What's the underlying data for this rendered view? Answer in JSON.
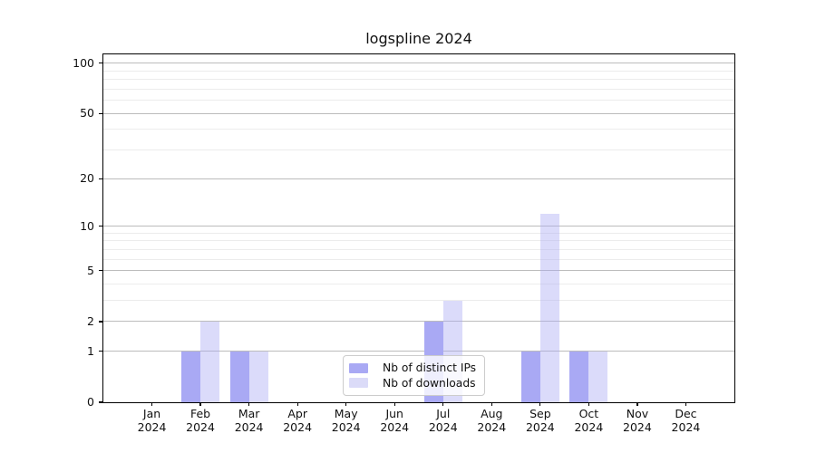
{
  "figure": {
    "background": "#ffffff"
  },
  "chart_data": {
    "type": "bar",
    "title": "logspline 2024",
    "categories": [
      "Jan",
      "Feb",
      "Mar",
      "Apr",
      "May",
      "Jun",
      "Jul",
      "Aug",
      "Sep",
      "Oct",
      "Nov",
      "Dec"
    ],
    "year_label": "2024",
    "series": [
      {
        "name": "Nb of distinct IPs",
        "color": "#a9a9f4",
        "fill": "#a9a9f4",
        "values": [
          0,
          1,
          1,
          0,
          0,
          0,
          2,
          0,
          1,
          1,
          0,
          0
        ]
      },
      {
        "name": "Nb of downloads",
        "color": "#dbdbf8",
        "fill": "rgba(169,169,244,0.42)",
        "values": [
          0,
          2,
          1,
          0,
          0,
          0,
          3,
          0,
          12,
          1,
          0,
          0
        ]
      }
    ],
    "xlabel": "",
    "ylabel": "",
    "y_axis": {
      "scale": "log1p",
      "tick_values": [
        0,
        1,
        2,
        5,
        10,
        20,
        50,
        100
      ],
      "tick_labels": [
        "0",
        "1",
        "2",
        "5",
        "10",
        "20",
        "50",
        "100"
      ],
      "minor_gridlines": [
        3,
        4,
        6,
        7,
        8,
        9,
        30,
        40,
        60,
        70,
        80,
        90
      ],
      "ylim": [
        0,
        113
      ]
    },
    "grid": true,
    "legend_position": "inside-bottom-center",
    "colors": {
      "major_grid": "#bcbcbc",
      "minor_grid": "#ececec",
      "axis": "#000000",
      "text": "#111111"
    }
  }
}
